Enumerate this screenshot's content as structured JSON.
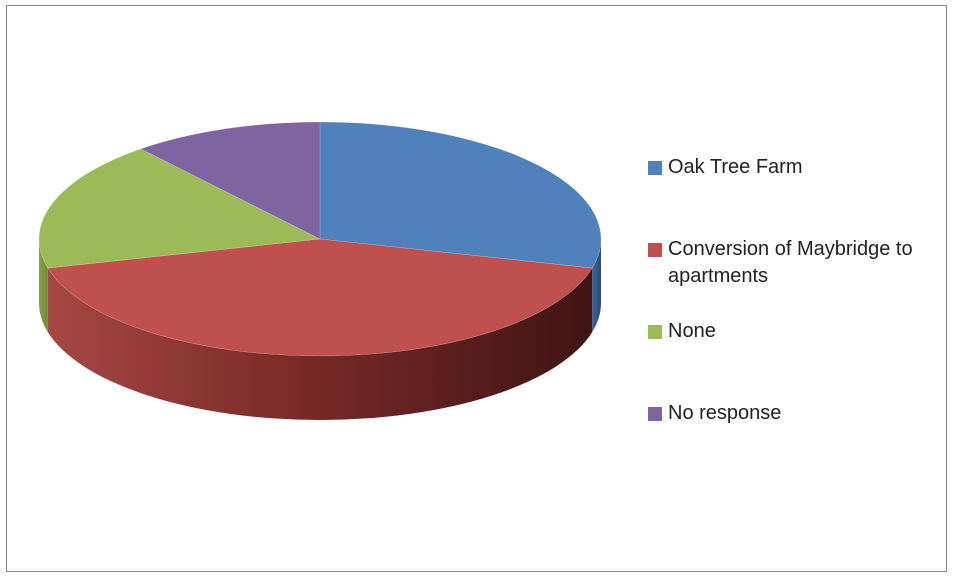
{
  "chart_data": {
    "type": "pie",
    "style": "3d",
    "legend_position": "right",
    "categories": [
      "Oak Tree Farm",
      "Conversion of Maybridge to apartments",
      "None",
      "No response"
    ],
    "values": [
      29,
      42,
      18,
      11
    ],
    "colors": [
      "#4f81bd",
      "#c0504d",
      "#9bbb59",
      "#8064a2"
    ],
    "dark_colors": [
      "#2a4b78",
      "#4f1a1a",
      "#556b2c",
      "#4a3563"
    ]
  }
}
